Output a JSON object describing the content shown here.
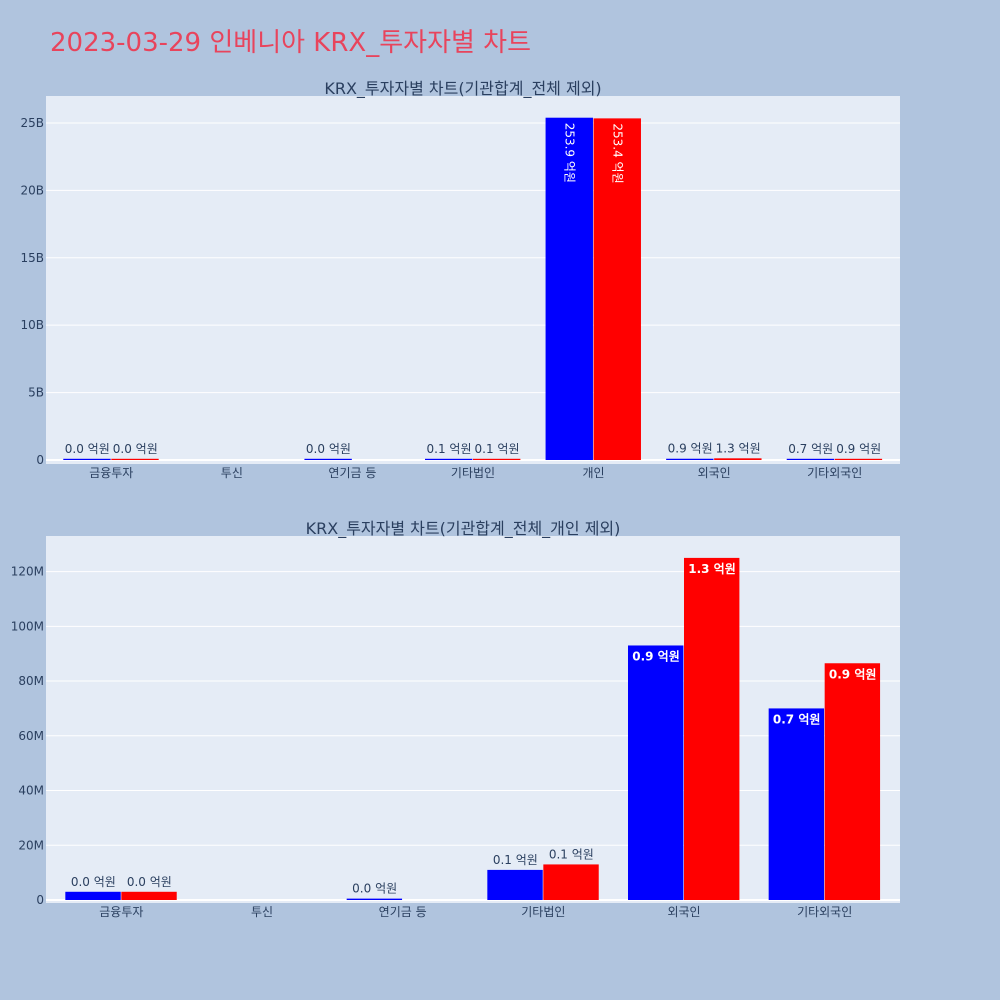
{
  "page_title": "2023-03-29 인베니아 KRX_투자자별 차트",
  "colors": {
    "buy": "#0000ff",
    "sell": "#ff0000",
    "plot_bg": "#e5ecf6",
    "page_bg": "#b0c4de",
    "title": "#e8445c"
  },
  "chart_data": [
    {
      "type": "bar",
      "title": "KRX_투자자별 차트(기관합계_전체 제외)",
      "categories": [
        "금융투자",
        "투신",
        "연기금 등",
        "기타법인",
        "개인",
        "외국인",
        "기타외국인"
      ],
      "series": [
        {
          "color": "#0000ff",
          "values": [
            1500000,
            null,
            1000000,
            10000000,
            25390000000,
            93000000,
            70000000
          ],
          "labels": [
            "0.0 억원",
            "",
            "0.0 억원",
            "0.1 억원",
            "253.9 억원",
            "0.9 억원",
            "0.7 억원"
          ]
        },
        {
          "color": "#ff0000",
          "values": [
            1500000,
            null,
            null,
            13000000,
            25340000000,
            125000000,
            86000000
          ],
          "labels": [
            "0.0 억원",
            "",
            "",
            "0.1 억원",
            "253.4 억원",
            "1.3 억원",
            "0.9 억원"
          ]
        }
      ],
      "yticks": [
        "0",
        "5B",
        "10B",
        "15B",
        "20B",
        "25B"
      ],
      "ytick_values": [
        0,
        5000000000,
        10000000000,
        15000000000,
        20000000000,
        25000000000
      ],
      "ylim": [
        0,
        27000000000
      ]
    },
    {
      "type": "bar",
      "title": "KRX_투자자별 차트(기관합계_전체_개인 제외)",
      "categories": [
        "금융투자",
        "투신",
        "연기금 등",
        "기타법인",
        "외국인",
        "기타외국인"
      ],
      "series": [
        {
          "color": "#0000ff",
          "values": [
            3000000,
            null,
            500000,
            11000000,
            93000000,
            70000000
          ],
          "labels": [
            "0.0 억원",
            "",
            "0.0 억원",
            "0.1 억원",
            "0.9 억원",
            "0.7 억원"
          ]
        },
        {
          "color": "#ff0000",
          "values": [
            3000000,
            null,
            null,
            13000000,
            125000000,
            86500000
          ],
          "labels": [
            "0.0 억원",
            "",
            "",
            "0.1 억원",
            "1.3 억원",
            "0.9 억원"
          ]
        }
      ],
      "yticks": [
        "0",
        "20M",
        "40M",
        "60M",
        "80M",
        "100M",
        "120M"
      ],
      "ytick_values": [
        0,
        20000000,
        40000000,
        60000000,
        80000000,
        100000000,
        120000000
      ],
      "ylim": [
        0,
        133000000
      ]
    }
  ]
}
